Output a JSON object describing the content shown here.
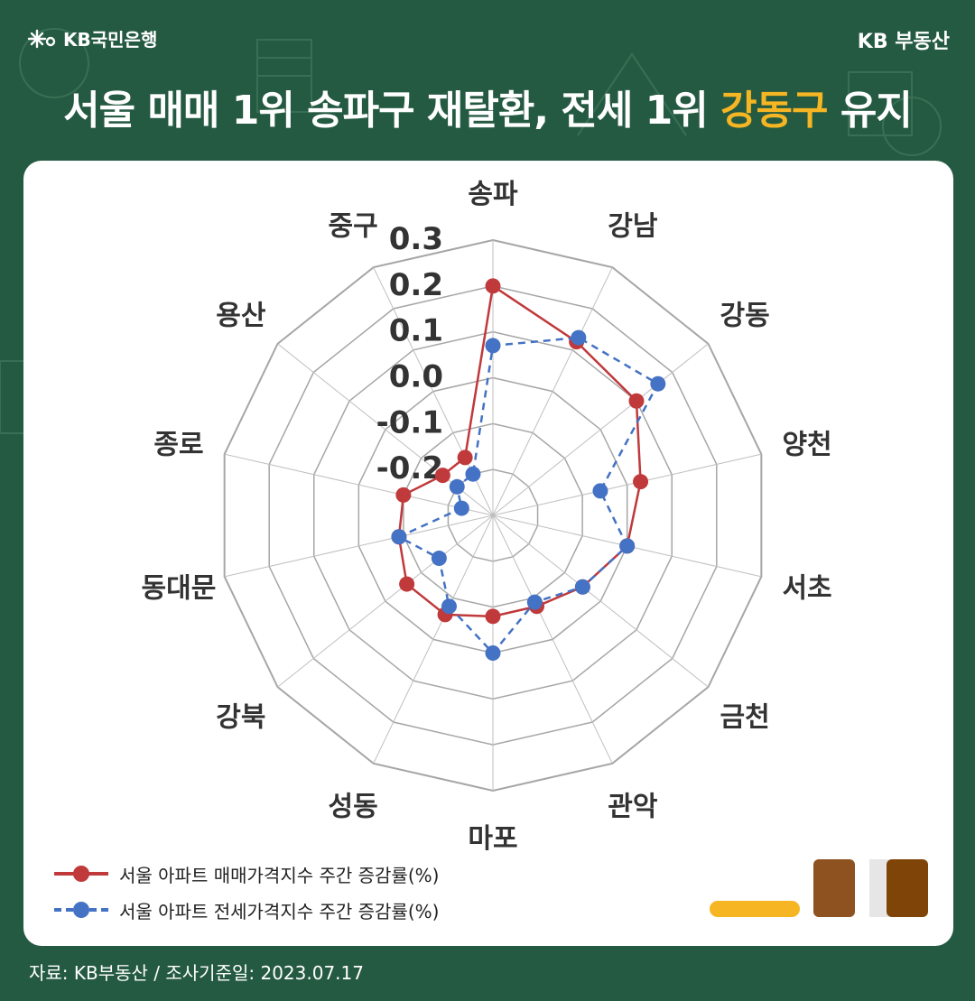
{
  "header": {
    "logo_text": "KB국민은행",
    "logo_icon": "kb-star-icon",
    "brand": "KB 부동산",
    "title_part1": "서울 매매 1위 송파구 재탈환, 전세 1위 ",
    "title_highlight": "강동구",
    "title_part2": " 유지"
  },
  "colors": {
    "background": "#255a42",
    "highlight": "#f6b523",
    "sale_series": "#c0393b",
    "jeonse_series": "#4472c4",
    "grid": "#a6a6a6"
  },
  "chart_data": {
    "type": "radar",
    "categories": [
      "송파",
      "강남",
      "강동",
      "양천",
      "서초",
      "금천",
      "관악",
      "마포",
      "성동",
      "강북",
      "동대문",
      "종로",
      "용산",
      "중구"
    ],
    "ticks": [
      "0.3",
      "0.2",
      "0.1",
      "0.0",
      "-0.1",
      "-0.2"
    ],
    "range": [
      -0.3,
      0.3
    ],
    "series": [
      {
        "name": "서울 아파트 매매가격지수 주간 증감률(%)",
        "style": "solid",
        "values": [
          0.2,
          0.12,
          0.1,
          0.03,
          0.0,
          -0.05,
          -0.08,
          -0.08,
          -0.06,
          -0.06,
          -0.09,
          -0.1,
          -0.16,
          -0.16
        ]
      },
      {
        "name": "서울 아파트 전세가격지수 주간 증감률(%)",
        "style": "dashed",
        "values": [
          0.07,
          0.13,
          0.16,
          -0.06,
          0.0,
          -0.05,
          -0.09,
          0.0,
          -0.08,
          -0.15,
          -0.09,
          -0.23,
          -0.2,
          -0.2
        ]
      }
    ],
    "grid": true,
    "legend_position": "bottom-left"
  },
  "footer": {
    "source": "자료: KB부동산 / 조사기준일: 2023.07.17"
  }
}
